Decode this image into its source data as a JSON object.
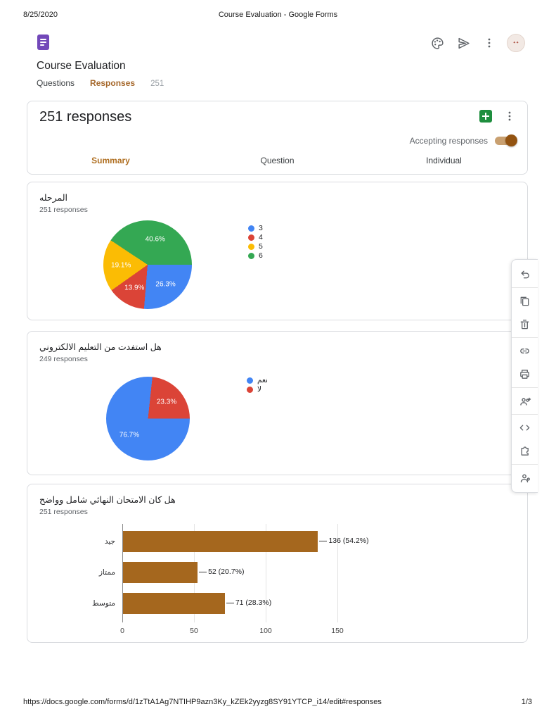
{
  "print_header": {
    "date": "8/25/2020",
    "title": "Course Evaluation - Google Forms"
  },
  "print_footer": {
    "url": "https://docs.google.com/forms/d/1zTtA1Ag7NTIHP9azn3Ky_kZEk2yyzg8SY91YTCP_i14/edit#responses",
    "page_indicator": "1/3"
  },
  "app_header": {
    "form_title": "Course Evaluation",
    "nav_tabs": {
      "questions": "Questions",
      "responses": "Responses",
      "responses_count": "251"
    },
    "action_icons": [
      "palette-icon",
      "send-icon",
      "more-options-icon",
      "account-avatar"
    ]
  },
  "responses_panel": {
    "title": "251 responses",
    "accepting_label": "Accepting responses",
    "accepting": true,
    "view_tabs": {
      "summary": "Summary",
      "question": "Question",
      "individual": "Individual"
    },
    "active_view_tab": "Summary",
    "icons": [
      "create-spreadsheet-icon",
      "more-options-icon"
    ]
  },
  "side_toolbar": {
    "items": [
      "undo",
      "duplicate",
      "delete",
      "get-link",
      "print",
      "add-collaborators",
      "embed-code",
      "add-ons",
      "account-settings"
    ]
  },
  "colors": {
    "accent": "#a5672a",
    "toggle_knob": "#935311",
    "bar": "#a5671e",
    "pie_palette": [
      "#4285f4",
      "#db4437",
      "#fbbc04",
      "#34a853"
    ]
  },
  "chart_data": [
    {
      "type": "pie",
      "question": "المرحله",
      "responses_label": "251 responses",
      "labels": [
        "3",
        "4",
        "5",
        "6"
      ],
      "values_pct": [
        26.3,
        13.9,
        19.1,
        40.6
      ],
      "slice_labels": [
        "26.3%",
        "13.9%",
        "19.1%",
        "40.6%"
      ],
      "colors": [
        "#4285f4",
        "#db4437",
        "#fbbc04",
        "#34a853"
      ],
      "legend_position": "right",
      "start_angle_deg": 90
    },
    {
      "type": "pie",
      "question": "هل استفدت من التعليم الالكتروني",
      "responses_label": "249 responses",
      "labels": [
        "نعم",
        "لا"
      ],
      "values_pct": [
        76.7,
        23.3
      ],
      "slice_labels": [
        "76.7%",
        "23.3%"
      ],
      "colors": [
        "#4285f4",
        "#db4437"
      ],
      "legend_position": "right",
      "start_angle_deg": 90
    },
    {
      "type": "bar",
      "question": "هل كان الامتحان النهائي شامل وواضح",
      "responses_label": "251 responses",
      "categories": [
        "جيد",
        "ممتاز",
        "متوسط"
      ],
      "values": [
        136,
        52,
        71
      ],
      "value_labels": [
        "136 (54.2%)",
        "52 (20.7%)",
        "71 (28.3%)"
      ],
      "xticks": [
        0,
        50,
        100,
        150
      ],
      "xlim": [
        0,
        150
      ],
      "bar_color": "#a5671e",
      "grid": true
    }
  ]
}
